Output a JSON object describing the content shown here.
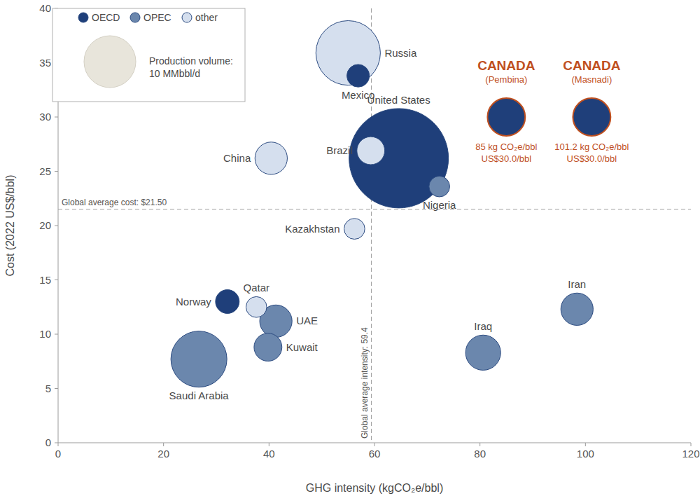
{
  "chart_data": {
    "type": "scatter",
    "x_label": "GHG intensity (kgCO₂e/bbl)",
    "y_label": "Cost (2022 US$/bbl)",
    "xlim": [
      0,
      120
    ],
    "ylim": [
      0,
      40
    ],
    "xticks": [
      0,
      20,
      40,
      60,
      80,
      100,
      120
    ],
    "yticks": [
      0,
      5,
      10,
      15,
      20,
      25,
      30,
      35,
      40
    ],
    "grid": false,
    "legend": "top-left",
    "series": [
      {
        "name": "OECD",
        "color": "#1f3f7a",
        "labels": [
          "Mexico",
          "United States",
          "Norway"
        ],
        "x": [
          56.9,
          64.6,
          32.1
        ],
        "values": [
          33.8,
          26.2,
          13.0
        ],
        "size": [
          1.9,
          36.8,
          2.1
        ]
      },
      {
        "name": "OPEC",
        "color": "#6b87ad",
        "labels": [
          "Nigeria",
          "UAE",
          "Kuwait",
          "Saudi Arabia",
          "Iraq",
          "Iran"
        ],
        "x": [
          72.3,
          41.3,
          39.8,
          26.7,
          80.6,
          98.4
        ],
        "values": [
          23.6,
          11.2,
          8.8,
          7.7,
          8.3,
          12.3
        ],
        "size": [
          1.6,
          3.9,
          2.9,
          11.7,
          4.6,
          3.9
        ]
      },
      {
        "name": "other",
        "color": "#d5dfee",
        "labels": [
          "Russia",
          "Brazil",
          "China",
          "Kazakhstan",
          "Qatar"
        ],
        "x": [
          55.0,
          59.3,
          40.4,
          56.2,
          37.6
        ],
        "values": [
          35.9,
          26.9,
          26.2,
          19.7,
          12.5
        ],
        "size": [
          15.5,
          2.9,
          3.9,
          1.6,
          1.6
        ]
      }
    ],
    "highlight_points": {
      "color": "#1f3f7a",
      "points": [
        {
          "label": "CANADA",
          "sublabel": "(Pembina)",
          "x": 85,
          "y": 30,
          "size": 5.3,
          "x_label": "85 kg CO₂e/bbl",
          "y_label": "US$30.0/bbl"
        },
        {
          "label": "CANADA",
          "sublabel": "(Masnadi)",
          "x": 101.2,
          "y": 30,
          "size": 5.3,
          "x_label": "101.2 kg CO₂e/bbl",
          "y_label": "US$30.0/bbl"
        }
      ]
    },
    "size_legend": {
      "title": "Production volume:",
      "value": 10,
      "label": "10 MMbbl/d"
    },
    "reference_lines": [
      {
        "axis": "y",
        "value": 21.5,
        "label": "Global average cost: $21.50"
      },
      {
        "axis": "x",
        "value": 59.4,
        "label": "Global average intensity: 59.4"
      }
    ]
  }
}
